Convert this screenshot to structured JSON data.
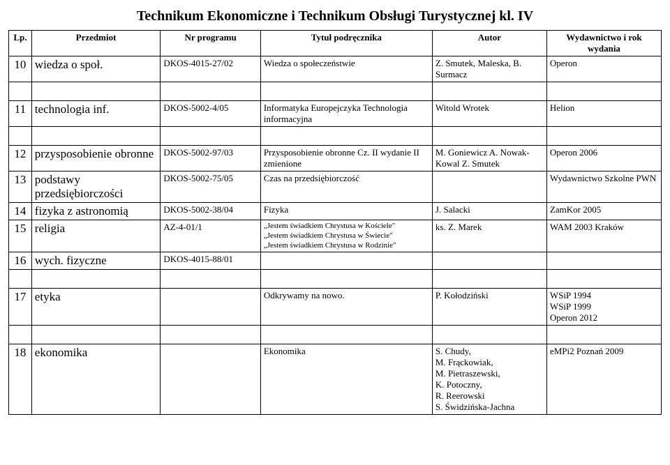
{
  "title": "Technikum Ekonomiczne i Technikum Obsługi Turystycznej kl. IV",
  "headers": {
    "lp": "Lp.",
    "subject": "Przedmiot",
    "program": "Nr programu",
    "book": "Tytuł podręcznika",
    "author": "Autor",
    "publisher": "Wydawnictwo i rok wydania"
  },
  "rows": [
    {
      "lp": "10",
      "subject": "wiedza o społ.",
      "program": "DKOS-4015-27/02",
      "book": "Wiedza o społeczeństwie",
      "author": "Z. Smutek, Maleska, B. Surmacz",
      "publisher": "Operon"
    },
    {
      "lp": "11",
      "subject": "technologia inf.",
      "program": "DKOS-5002-4/05",
      "book": "Informatyka Europejczyka Technologia informacyjna",
      "author": "Witold Wrotek",
      "publisher": "Helion"
    },
    {
      "lp": "12",
      "subject": "przysposobienie obronne",
      "program": "DKOS-5002-97/03",
      "book": "Przysposobienie obronne Cz. II wydanie II zmienione",
      "author": "M. Goniewicz A. Nowak-Kowal Z. Smutek",
      "publisher": "Operon 2006"
    },
    {
      "lp": "13",
      "subject": "podstawy przedsiębiorczości",
      "program": "DKOS-5002-75/05",
      "book": "Czas na przedsiębiorczość",
      "author": "",
      "publisher": "Wydawnictwo Szkolne PWN"
    },
    {
      "lp": "14",
      "subject": "fizyka z astronomią",
      "program": "DKOS-5002-38/04",
      "book": "Fizyka",
      "author": "J. Salacki",
      "publisher": "ZamKor 2005"
    },
    {
      "lp": "15",
      "subject": "religia",
      "program": "AZ-4-01/1",
      "book_lines": [
        "„Jestem świadkiem Chrystusa w Kościele\"",
        "„Jestem świadkiem Chrystusa w Świecie\"",
        "„Jestem świadkiem Chrystusa w Rodzinie\""
      ],
      "author": "ks. Z. Marek",
      "publisher": "WAM 2003 Kraków"
    },
    {
      "lp": "16",
      "subject": "wych. fizyczne",
      "program": "DKOS-4015-88/01",
      "book": "",
      "author": "",
      "publisher": ""
    },
    {
      "lp": "17",
      "subject": "etyka",
      "program": "",
      "book": "Odkrywamy na nowo.",
      "author": "P. Kołodziński",
      "publisher_lines": [
        "WSiP 1994",
        "WSiP 1999",
        "Operon 2012"
      ]
    },
    {
      "lp": "18",
      "subject": "ekonomika",
      "program": "",
      "book": "Ekonomika",
      "author_lines": [
        "S. Chudy,",
        "M. Frąckowiak,",
        "M. Pietraszewski,",
        "K. Potoczny,",
        "R. Reerowski",
        "S. Świdzińska-Jachna"
      ],
      "publisher": "eMPi2 Poznań 2009"
    }
  ]
}
